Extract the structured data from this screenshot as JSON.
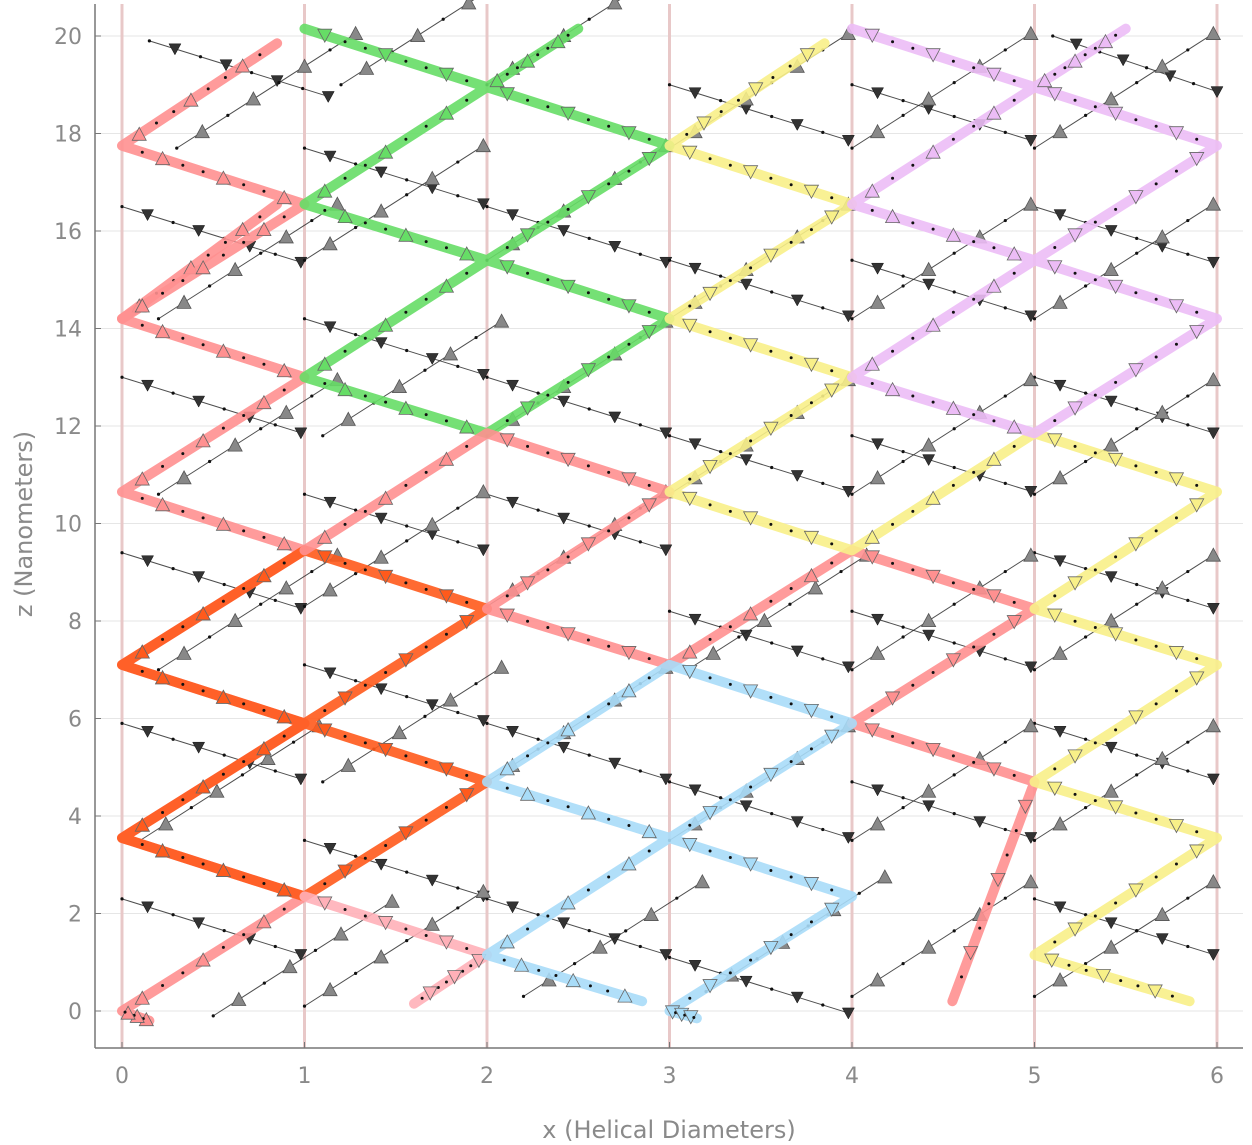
{
  "chart_data": {
    "type": "line",
    "title": "",
    "xlabel": "x (Helical Diameters)",
    "ylabel": "z (Nanometers)",
    "xlim": [
      -0.15,
      6.15
    ],
    "ylim": [
      -0.75,
      20.6
    ],
    "xticks": [
      0,
      1,
      2,
      3,
      4,
      5,
      6
    ],
    "yticks": [
      0,
      2,
      4,
      6,
      8,
      10,
      12,
      14,
      16,
      18,
      20
    ],
    "x_tick_labels": [
      "0",
      "1",
      "2",
      "3",
      "4",
      "5",
      "6"
    ],
    "y_tick_labels": [
      "0",
      "2",
      "4",
      "6",
      "8",
      "10",
      "12",
      "14",
      "16",
      "18",
      "20"
    ],
    "grid": true,
    "legend": "none",
    "vertical_guides": [
      0,
      1,
      2,
      3,
      4,
      5,
      6
    ],
    "guide_color": "#e8c8c8",
    "highlight_series": [
      {
        "color": "#ff9090",
        "width": 10,
        "x": [
          0.15,
          0.0,
          1.0,
          0.0,
          1.0,
          0.0,
          1.0,
          0.0,
          1.0,
          0.0,
          0.85
        ],
        "y": [
          -0.2,
          0.0,
          2.35,
          3.55,
          5.9,
          7.1,
          9.45,
          10.65,
          13.0,
          14.2,
          16.55
        ]
      },
      {
        "color": "#ff9090",
        "width": 10,
        "x": [
          0.0,
          1.0,
          0.0,
          0.85
        ],
        "y": [
          14.2,
          16.55,
          17.75,
          19.85
        ]
      },
      {
        "color": "#ff5a1c",
        "width": 10,
        "x": [
          1.0,
          0.0,
          1.0,
          0.0,
          1.0,
          2.0,
          1.0,
          2.0,
          1.0
        ],
        "y": [
          2.35,
          3.55,
          5.9,
          7.1,
          9.45,
          8.25,
          5.9,
          4.7,
          2.35
        ]
      },
      {
        "color": "#ffb0b8",
        "width": 10,
        "x": [
          1.0,
          2.0,
          1.6
        ],
        "y": [
          2.35,
          1.15,
          0.15
        ]
      },
      {
        "color": "#66dd66",
        "width": 10,
        "x": [
          1.0,
          2.0,
          3.0,
          2.0,
          3.0,
          2.0,
          1.0,
          2.0,
          1.0,
          2.0,
          2.5
        ],
        "y": [
          20.15,
          18.95,
          17.75,
          15.4,
          14.2,
          11.85,
          13.0,
          15.4,
          16.55,
          18.95,
          20.15
        ]
      },
      {
        "color": "#ff9090",
        "width": 10,
        "x": [
          1.0,
          2.0,
          3.0,
          2.0,
          3.0,
          4.0,
          5.0,
          4.0,
          5.0,
          4.55
        ],
        "y": [
          9.45,
          11.85,
          10.65,
          8.25,
          7.1,
          9.45,
          8.25,
          5.9,
          4.7,
          0.2
        ]
      },
      {
        "color": "#a8dcf8",
        "width": 10,
        "x": [
          2.85,
          2.0,
          3.0,
          2.0,
          3.0,
          4.0,
          3.0,
          4.0,
          3.0,
          3.15
        ],
        "y": [
          0.2,
          1.15,
          3.55,
          4.7,
          7.1,
          5.9,
          3.55,
          2.35,
          0.0,
          -0.15
        ]
      },
      {
        "color": "#f8f088",
        "width": 10,
        "x": [
          3.85,
          3.0,
          4.0,
          3.0,
          4.0,
          3.0,
          4.0,
          5.0,
          6.0,
          5.0,
          6.0,
          5.0,
          6.0,
          5.0,
          5.85
        ],
        "y": [
          19.85,
          17.75,
          16.55,
          14.2,
          13.0,
          10.65,
          9.45,
          11.85,
          10.65,
          8.25,
          7.1,
          4.7,
          3.55,
          1.15,
          0.2
        ]
      },
      {
        "color": "#ecbcf6",
        "width": 10,
        "x": [
          4.0,
          5.0,
          6.0,
          5.0,
          6.0,
          5.0,
          4.0,
          5.0,
          4.0,
          5.0,
          5.5
        ],
        "y": [
          20.15,
          18.95,
          17.75,
          15.4,
          14.2,
          11.85,
          13.0,
          15.4,
          16.55,
          18.95,
          20.15
        ]
      }
    ],
    "backbone_strands": [
      {
        "x0": 0.15,
        "z0": 19.9,
        "dir": 1
      },
      {
        "x0": 0.0,
        "z0": 16.5,
        "dir": 1
      },
      {
        "x0": 0.0,
        "z0": 13.0,
        "dir": 1
      },
      {
        "x0": 0.0,
        "z0": 9.4,
        "dir": 1
      },
      {
        "x0": 0.0,
        "z0": 5.9,
        "dir": 1
      },
      {
        "x0": 0.0,
        "z0": 2.3,
        "dir": 1
      },
      {
        "x0": 1.0,
        "z0": 17.7,
        "dir": 1
      },
      {
        "x0": 1.0,
        "z0": 14.2,
        "dir": 1
      },
      {
        "x0": 1.0,
        "z0": 10.6,
        "dir": 1
      },
      {
        "x0": 1.0,
        "z0": 7.1,
        "dir": 1
      },
      {
        "x0": 1.0,
        "z0": 3.5,
        "dir": 1
      },
      {
        "x0": 2.0,
        "z0": 16.5,
        "dir": 1
      },
      {
        "x0": 2.0,
        "z0": 13.0,
        "dir": 1
      },
      {
        "x0": 2.0,
        "z0": 10.6,
        "dir": 1
      },
      {
        "x0": 2.0,
        "z0": 5.9,
        "dir": 1
      },
      {
        "x0": 2.0,
        "z0": 2.3,
        "dir": 1
      },
      {
        "x0": 3.0,
        "z0": 19.0,
        "dir": 1
      },
      {
        "x0": 3.0,
        "z0": 15.4,
        "dir": 1
      },
      {
        "x0": 3.0,
        "z0": 11.8,
        "dir": 1
      },
      {
        "x0": 3.0,
        "z0": 8.2,
        "dir": 1
      },
      {
        "x0": 3.0,
        "z0": 4.7,
        "dir": 1
      },
      {
        "x0": 3.0,
        "z0": 1.1,
        "dir": 1
      },
      {
        "x0": 4.0,
        "z0": 19.0,
        "dir": 1
      },
      {
        "x0": 4.0,
        "z0": 15.4,
        "dir": 1
      },
      {
        "x0": 4.0,
        "z0": 11.8,
        "dir": 1
      },
      {
        "x0": 4.0,
        "z0": 8.2,
        "dir": 1
      },
      {
        "x0": 4.0,
        "z0": 4.7,
        "dir": 1
      },
      {
        "x0": 5.1,
        "z0": 20.0,
        "dir": 1
      },
      {
        "x0": 5.0,
        "z0": 16.5,
        "dir": 1
      },
      {
        "x0": 5.0,
        "z0": 13.0,
        "dir": 1
      },
      {
        "x0": 5.0,
        "z0": 9.4,
        "dir": 1
      },
      {
        "x0": 5.0,
        "z0": 5.9,
        "dir": 1
      },
      {
        "x0": 5.0,
        "z0": 2.3,
        "dir": 1
      },
      {
        "x0": 1.0,
        "z0": 0.1,
        "dir": -1
      },
      {
        "x0": 0.5,
        "z0": -0.1,
        "dir": -1
      },
      {
        "x0": 2.2,
        "z0": 0.3,
        "dir": -1
      },
      {
        "x0": 3.2,
        "z0": 0.4,
        "dir": -1
      },
      {
        "x0": 4.0,
        "z0": 0.3,
        "dir": -1
      },
      {
        "x0": 5.0,
        "z0": 0.3,
        "dir": -1
      },
      {
        "x0": 0.1,
        "z0": 3.5,
        "dir": -1
      },
      {
        "x0": 1.1,
        "z0": 4.7,
        "dir": -1
      },
      {
        "x0": 2.0,
        "z0": 4.7,
        "dir": -1
      },
      {
        "x0": 3.0,
        "z0": 3.5,
        "dir": -1
      },
      {
        "x0": 4.0,
        "z0": 3.5,
        "dir": -1
      },
      {
        "x0": 5.0,
        "z0": 3.5,
        "dir": -1
      },
      {
        "x0": 0.2,
        "z0": 7.0,
        "dir": -1
      },
      {
        "x0": 1.0,
        "z0": 8.3,
        "dir": -1
      },
      {
        "x0": 2.0,
        "z0": 8.3,
        "dir": -1
      },
      {
        "x0": 3.1,
        "z0": 7.0,
        "dir": -1
      },
      {
        "x0": 4.0,
        "z0": 7.0,
        "dir": -1
      },
      {
        "x0": 5.0,
        "z0": 7.0,
        "dir": -1
      },
      {
        "x0": 0.2,
        "z0": 10.6,
        "dir": -1
      },
      {
        "x0": 1.1,
        "z0": 11.8,
        "dir": -1
      },
      {
        "x0": 2.0,
        "z0": 11.8,
        "dir": -1
      },
      {
        "x0": 3.0,
        "z0": 10.6,
        "dir": -1
      },
      {
        "x0": 4.0,
        "z0": 10.6,
        "dir": -1
      },
      {
        "x0": 5.0,
        "z0": 10.6,
        "dir": -1
      },
      {
        "x0": 0.2,
        "z0": 14.2,
        "dir": -1
      },
      {
        "x0": 1.0,
        "z0": 15.4,
        "dir": -1
      },
      {
        "x0": 2.0,
        "z0": 15.4,
        "dir": -1
      },
      {
        "x0": 3.0,
        "z0": 14.2,
        "dir": -1
      },
      {
        "x0": 4.0,
        "z0": 14.2,
        "dir": -1
      },
      {
        "x0": 5.0,
        "z0": 14.2,
        "dir": -1
      },
      {
        "x0": 0.3,
        "z0": 17.7,
        "dir": -1
      },
      {
        "x0": 1.2,
        "z0": 19.0,
        "dir": -1
      },
      {
        "x0": 2.0,
        "z0": 19.0,
        "dir": -1
      },
      {
        "x0": 3.0,
        "z0": 17.7,
        "dir": -1
      },
      {
        "x0": 4.0,
        "z0": 17.7,
        "dir": -1
      },
      {
        "x0": 5.0,
        "z0": 17.7,
        "dir": -1
      }
    ],
    "colors": {
      "axis": "#777777",
      "grid": "#e6e6e6",
      "marker_fill": "#888888",
      "strand": "#222222"
    }
  }
}
